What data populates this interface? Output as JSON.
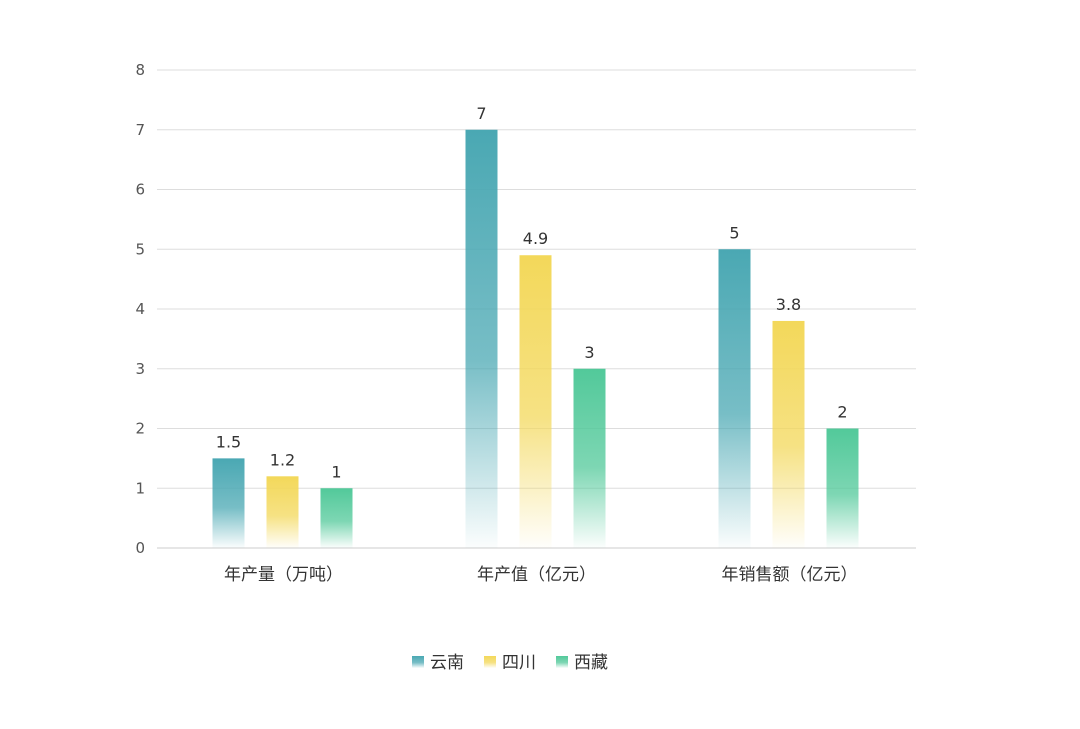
{
  "chart_data": {
    "type": "bar",
    "title": "",
    "xlabel": "",
    "ylabel": "",
    "categories": [
      "年产量（万吨）",
      "年产值（亿元）",
      "年销售额（亿元）"
    ],
    "series": [
      {
        "name": "云南",
        "values": [
          1.5,
          7,
          5
        ],
        "color": "#4aa8b3"
      },
      {
        "name": "四川",
        "values": [
          1.2,
          4.9,
          3.8
        ],
        "color": "#f3d85a"
      },
      {
        "name": "西藏",
        "values": [
          1,
          3,
          2
        ],
        "color": "#52c99a"
      }
    ],
    "ylim": [
      0,
      8
    ],
    "yticks": [
      0,
      1,
      2,
      3,
      4,
      5,
      6,
      7,
      8
    ],
    "grid": true,
    "legend": "bottom",
    "data_labels": true
  }
}
